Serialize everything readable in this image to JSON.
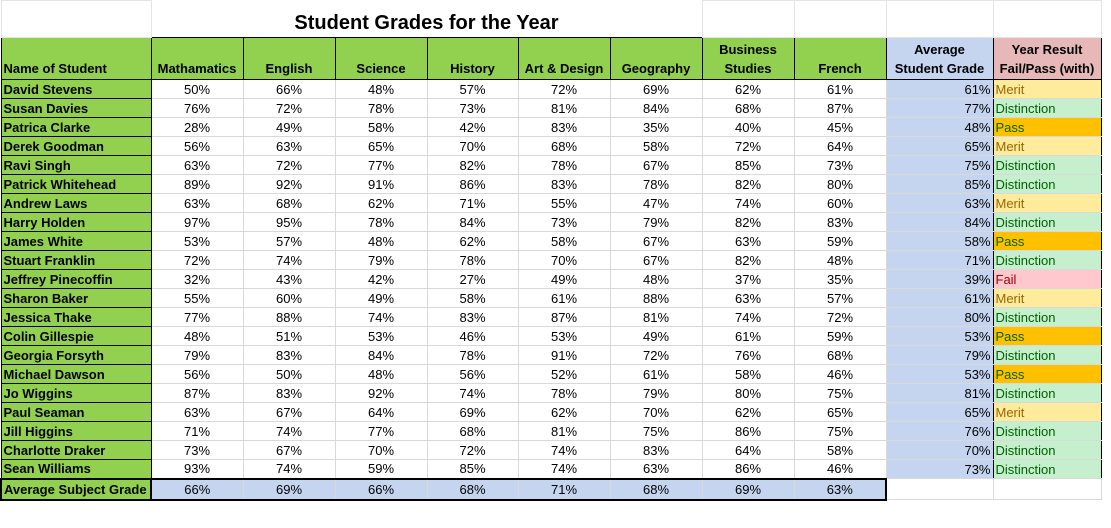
{
  "title": "Student Grades for the Year",
  "headers": {
    "name": "Name of Student",
    "subjects": [
      "Mathamatics",
      "English",
      "Science",
      "History",
      "Art & Design",
      "Geography",
      "Business Studies",
      "French"
    ],
    "average": "Average Student Grade",
    "result": "Year Result Fail/Pass (with)"
  },
  "colors": {
    "green": "#92d050",
    "blue": "#c5d5ef",
    "pink_header": "#e6b8b7",
    "merit": "#ffeb9c",
    "distinction": "#c6efce",
    "pass": "#ffc000",
    "fail": "#ffc7ce"
  },
  "students": [
    {
      "name": "David Stevens",
      "grades": [
        "50%",
        "66%",
        "48%",
        "57%",
        "72%",
        "69%",
        "62%",
        "61%"
      ],
      "average": "61%",
      "result": "Merit"
    },
    {
      "name": "Susan Davies",
      "grades": [
        "76%",
        "72%",
        "78%",
        "73%",
        "81%",
        "84%",
        "68%",
        "87%"
      ],
      "average": "77%",
      "result": "Distinction"
    },
    {
      "name": "Patrica Clarke",
      "grades": [
        "28%",
        "49%",
        "58%",
        "42%",
        "83%",
        "35%",
        "40%",
        "45%"
      ],
      "average": "48%",
      "result": "Pass"
    },
    {
      "name": "Derek Goodman",
      "grades": [
        "56%",
        "63%",
        "65%",
        "70%",
        "68%",
        "58%",
        "72%",
        "64%"
      ],
      "average": "65%",
      "result": "Merit"
    },
    {
      "name": "Ravi Singh",
      "grades": [
        "63%",
        "72%",
        "77%",
        "82%",
        "78%",
        "67%",
        "85%",
        "73%"
      ],
      "average": "75%",
      "result": "Distinction"
    },
    {
      "name": "Patrick Whitehead",
      "grades": [
        "89%",
        "92%",
        "91%",
        "86%",
        "83%",
        "78%",
        "82%",
        "80%"
      ],
      "average": "85%",
      "result": "Distinction"
    },
    {
      "name": "Andrew Laws",
      "grades": [
        "63%",
        "68%",
        "62%",
        "71%",
        "55%",
        "47%",
        "74%",
        "60%"
      ],
      "average": "63%",
      "result": "Merit"
    },
    {
      "name": "Harry Holden",
      "grades": [
        "97%",
        "95%",
        "78%",
        "84%",
        "73%",
        "79%",
        "82%",
        "83%"
      ],
      "average": "84%",
      "result": "Distinction"
    },
    {
      "name": "James White",
      "grades": [
        "53%",
        "57%",
        "48%",
        "62%",
        "58%",
        "67%",
        "63%",
        "59%"
      ],
      "average": "58%",
      "result": "Pass"
    },
    {
      "name": "Stuart Franklin",
      "grades": [
        "72%",
        "74%",
        "79%",
        "78%",
        "70%",
        "67%",
        "82%",
        "48%"
      ],
      "average": "71%",
      "result": "Distinction"
    },
    {
      "name": "Jeffrey Pinecoffin",
      "grades": [
        "32%",
        "43%",
        "42%",
        "27%",
        "49%",
        "48%",
        "37%",
        "35%"
      ],
      "average": "39%",
      "result": "Fail"
    },
    {
      "name": "Sharon Baker",
      "grades": [
        "55%",
        "60%",
        "49%",
        "58%",
        "61%",
        "88%",
        "63%",
        "57%"
      ],
      "average": "61%",
      "result": "Merit"
    },
    {
      "name": "Jessica Thake",
      "grades": [
        "77%",
        "88%",
        "74%",
        "83%",
        "87%",
        "81%",
        "74%",
        "72%"
      ],
      "average": "80%",
      "result": "Distinction"
    },
    {
      "name": "Colin Gillespie",
      "grades": [
        "48%",
        "51%",
        "53%",
        "46%",
        "53%",
        "49%",
        "61%",
        "59%"
      ],
      "average": "53%",
      "result": "Pass"
    },
    {
      "name": "Georgia Forsyth",
      "grades": [
        "79%",
        "83%",
        "84%",
        "78%",
        "91%",
        "72%",
        "76%",
        "68%"
      ],
      "average": "79%",
      "result": "Distinction"
    },
    {
      "name": "Michael Dawson",
      "grades": [
        "56%",
        "50%",
        "48%",
        "56%",
        "52%",
        "61%",
        "58%",
        "46%"
      ],
      "average": "53%",
      "result": "Pass"
    },
    {
      "name": "Jo Wiggins",
      "grades": [
        "87%",
        "83%",
        "92%",
        "74%",
        "78%",
        "79%",
        "80%",
        "75%"
      ],
      "average": "81%",
      "result": "Distinction"
    },
    {
      "name": "Paul Seaman",
      "grades": [
        "63%",
        "67%",
        "64%",
        "69%",
        "62%",
        "70%",
        "62%",
        "65%"
      ],
      "average": "65%",
      "result": "Merit"
    },
    {
      "name": "Jill Higgins",
      "grades": [
        "71%",
        "74%",
        "77%",
        "68%",
        "81%",
        "75%",
        "86%",
        "75%"
      ],
      "average": "76%",
      "result": "Distinction"
    },
    {
      "name": "Charlotte Draker",
      "grades": [
        "73%",
        "67%",
        "70%",
        "72%",
        "74%",
        "83%",
        "64%",
        "58%"
      ],
      "average": "70%",
      "result": "Distinction"
    },
    {
      "name": "Sean Williams",
      "grades": [
        "93%",
        "74%",
        "59%",
        "85%",
        "74%",
        "63%",
        "86%",
        "46%"
      ],
      "average": "73%",
      "result": "Distinction"
    }
  ],
  "subject_averages": {
    "label": "Average Subject Grade",
    "values": [
      "66%",
      "69%",
      "66%",
      "68%",
      "71%",
      "68%",
      "69%",
      "63%"
    ]
  }
}
